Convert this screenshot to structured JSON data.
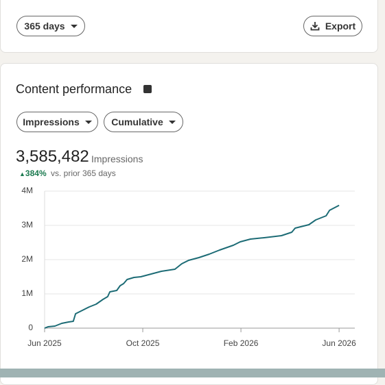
{
  "filters": {
    "period": "365 days",
    "export": "Export"
  },
  "card": {
    "title": "Content performance",
    "metric_select": "Impressions",
    "mode_select": "Cumulative",
    "total": "3,585,482",
    "total_unit": "Impressions",
    "change": "384%",
    "change_note": "vs. prior 365 days"
  },
  "chart_data": {
    "type": "line",
    "color": "#1c6b75",
    "grid": true,
    "x": [
      0,
      0.14,
      0.42,
      0.7,
      0.98,
      1.17,
      1.26,
      1.54,
      1.82,
      2.1,
      2.38,
      2.57,
      2.66,
      2.94,
      3.08,
      3.22,
      3.36,
      3.64,
      3.92,
      4.34,
      4.76,
      5.31,
      5.59,
      5.87,
      6.29,
      6.71,
      7.13,
      7.69,
      7.97,
      8.39,
      8.95,
      9.65,
      10.07,
      10.21,
      10.77,
      11.05,
      11.47,
      11.61,
      12.0
    ],
    "values": [
      0,
      40000,
      60000,
      140000,
      180000,
      200000,
      420000,
      520000,
      620000,
      700000,
      840000,
      920000,
      1060000,
      1100000,
      1240000,
      1300000,
      1420000,
      1480000,
      1500000,
      1580000,
      1660000,
      1720000,
      1880000,
      1980000,
      2060000,
      2160000,
      2280000,
      2420000,
      2520000,
      2600000,
      2640000,
      2700000,
      2800000,
      2920000,
      3020000,
      3160000,
      3280000,
      3440000,
      3585482
    ],
    "xlim": [
      0,
      12.64
    ],
    "xticks": [
      {
        "value": 0,
        "label": "Jun 2025"
      },
      {
        "value": 4,
        "label": "Oct 2025"
      },
      {
        "value": 8,
        "label": "Feb 2026"
      },
      {
        "value": 12,
        "label": "Jun 2026"
      }
    ],
    "ylim": [
      0,
      4000000
    ],
    "yticks": [
      0,
      {
        "value": 1000000,
        "label": "1M"
      },
      {
        "value": 2000000,
        "label": "2M"
      },
      {
        "value": 3000000,
        "label": "3M"
      },
      {
        "value": 4000000,
        "label": "4M"
      }
    ]
  }
}
